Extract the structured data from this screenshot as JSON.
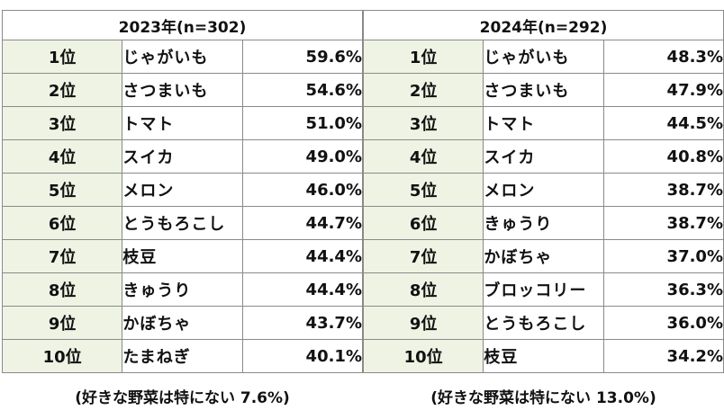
{
  "left": {
    "header": "2023年(n=302)",
    "rows": [
      {
        "rank": "1位",
        "item": "じゃがいも",
        "pct": "59.6%"
      },
      {
        "rank": "2位",
        "item": "さつまいも",
        "pct": "54.6%"
      },
      {
        "rank": "3位",
        "item": "トマト",
        "pct": "51.0%"
      },
      {
        "rank": "4位",
        "item": "スイカ",
        "pct": "49.0%"
      },
      {
        "rank": "5位",
        "item": "メロン",
        "pct": "46.0%"
      },
      {
        "rank": "6位",
        "item": "とうもろこし",
        "pct": "44.7%"
      },
      {
        "rank": "7位",
        "item": "枝豆",
        "pct": "44.4%"
      },
      {
        "rank": "8位",
        "item": "きゅうり",
        "pct": "44.4%"
      },
      {
        "rank": "9位",
        "item": "かぼちゃ",
        "pct": "43.7%"
      },
      {
        "rank": "10位",
        "item": "たまねぎ",
        "pct": "40.1%"
      }
    ],
    "note": "(好きな野菜は特にない 7.6%)"
  },
  "right": {
    "header": "2024年(n=292)",
    "rows": [
      {
        "rank": "1位",
        "item": "じゃがいも",
        "pct": "48.3%"
      },
      {
        "rank": "2位",
        "item": "さつまいも",
        "pct": "47.9%"
      },
      {
        "rank": "3位",
        "item": "トマト",
        "pct": "44.5%"
      },
      {
        "rank": "4位",
        "item": "スイカ",
        "pct": "40.8%"
      },
      {
        "rank": "5位",
        "item": "メロン",
        "pct": "38.7%"
      },
      {
        "rank": "6位",
        "item": "きゅうり",
        "pct": "38.7%"
      },
      {
        "rank": "7位",
        "item": "かぼちゃ",
        "pct": "37.0%"
      },
      {
        "rank": "8位",
        "item": "ブロッコリー",
        "pct": "36.3%"
      },
      {
        "rank": "9位",
        "item": "とうもろこし",
        "pct": "36.0%"
      },
      {
        "rank": "10位",
        "item": "枝豆",
        "pct": "34.2%"
      }
    ],
    "note": "(好きな野菜は特にない 13.0%)"
  },
  "colors": {
    "rank_cell_bg": "#eef3e3",
    "border": "#8a8a8a"
  }
}
